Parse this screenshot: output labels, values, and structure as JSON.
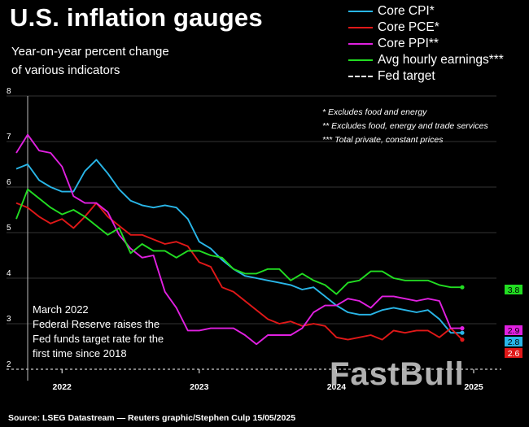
{
  "title": "U.S. inflation gauges",
  "subtitle_line1": "Year-on-year percent change",
  "subtitle_line2": "of various indicators",
  "legend": {
    "core_cpi": "Core CPI*",
    "core_pce": "Core PCE*",
    "core_ppi": "Core PPI**",
    "avg_hourly": "Avg hourly earnings***",
    "fed_target": "Fed target"
  },
  "notes": {
    "n1": "* Excludes food and energy",
    "n2": "** Excludes food, energy and trade services",
    "n3": "*** Total private, constant prices"
  },
  "annotation": {
    "line1": "March 2022",
    "line2": "Federal Reserve raises the",
    "line3": "Fed funds target rate for the",
    "line4": "first time since 2018"
  },
  "source": "Source: LSEG Datastream — Reuters graphic/Stephen Culp 15/05/2025",
  "watermark": "FastBull",
  "colors": {
    "core_cpi": "#29b6e8",
    "core_pce": "#e01818",
    "core_ppi": "#e020e0",
    "avg_hourly": "#22dd22",
    "fed_target": "#ffffff"
  },
  "chart_data": {
    "type": "line",
    "title": "U.S. inflation gauges",
    "ylabel": "Year-on-year percent change",
    "ylim": [
      2,
      8
    ],
    "yticks": [
      2,
      3,
      4,
      5,
      6,
      7,
      8
    ],
    "x_start": "2021-09",
    "x_end": "2025-05",
    "xticks": [
      {
        "label": "2022",
        "at": 4.0
      },
      {
        "label": "2023",
        "at": 16.0
      },
      {
        "label": "2024",
        "at": 28.0
      },
      {
        "label": "2025",
        "at": 40.0
      }
    ],
    "event_line_x": 6.0,
    "fed_target": 2.0,
    "series": [
      {
        "key": "core_cpi",
        "name": "Core CPI*",
        "values": [
          6.4,
          6.5,
          6.15,
          6.0,
          5.9,
          5.9,
          6.35,
          6.6,
          6.3,
          5.95,
          5.7,
          5.6,
          5.55,
          5.6,
          5.55,
          5.3,
          4.8,
          4.65,
          4.4,
          4.2,
          4.05,
          4.0,
          3.95,
          3.9,
          3.85,
          3.75,
          3.8,
          3.6,
          3.4,
          3.25,
          3.2,
          3.2,
          3.3,
          3.35,
          3.3,
          3.25,
          3.3,
          3.1,
          2.8,
          2.8
        ],
        "end_label": "2.8"
      },
      {
        "key": "core_pce",
        "name": "Core PCE*",
        "values": [
          5.65,
          5.55,
          5.35,
          5.2,
          5.3,
          5.1,
          5.35,
          5.65,
          5.35,
          5.15,
          4.95,
          4.95,
          4.85,
          4.75,
          4.8,
          4.7,
          4.35,
          4.25,
          3.8,
          3.7,
          3.5,
          3.3,
          3.1,
          3.0,
          3.05,
          2.95,
          3.0,
          2.95,
          2.7,
          2.65,
          2.7,
          2.75,
          2.65,
          2.85,
          2.8,
          2.85,
          2.85,
          2.7,
          2.9,
          2.65
        ],
        "end_label": "2.6"
      },
      {
        "key": "core_ppi",
        "name": "Core PPI**",
        "values": [
          6.75,
          7.15,
          6.8,
          6.75,
          6.45,
          5.8,
          5.65,
          5.65,
          5.45,
          4.95,
          4.65,
          4.45,
          4.5,
          3.7,
          3.35,
          2.85,
          2.85,
          2.9,
          2.9,
          2.9,
          2.75,
          2.55,
          2.75,
          2.75,
          2.75,
          2.9,
          3.25,
          3.4,
          3.4,
          3.55,
          3.5,
          3.35,
          3.6,
          3.6,
          3.55,
          3.5,
          3.55,
          3.5,
          2.9,
          2.9
        ],
        "end_label": "2.9"
      },
      {
        "key": "avg_hourly",
        "name": "Avg hourly earnings***",
        "values": [
          5.3,
          5.95,
          5.75,
          5.55,
          5.4,
          5.5,
          5.35,
          5.15,
          4.95,
          5.1,
          4.55,
          4.75,
          4.6,
          4.6,
          4.45,
          4.6,
          4.6,
          4.5,
          4.45,
          4.2,
          4.1,
          4.1,
          4.2,
          4.2,
          3.95,
          4.1,
          3.95,
          3.85,
          3.65,
          3.9,
          3.95,
          4.15,
          4.15,
          4.0,
          3.95,
          3.95,
          3.95,
          3.85,
          3.8,
          3.8
        ],
        "end_label": "3.8"
      }
    ]
  }
}
